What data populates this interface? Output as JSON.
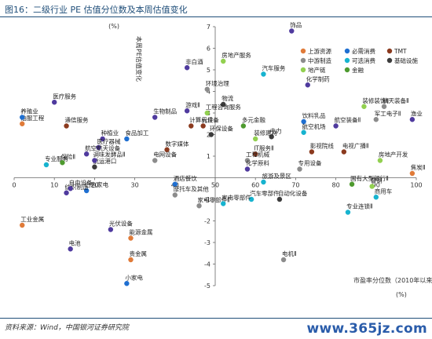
{
  "figure_title": "图16：二级行业 PE 估值分位数及本周估值变化",
  "source_note": "资料来源：Wind，中国银河证券研究院",
  "watermark": "www.365jz.com",
  "chart_data": {
    "type": "scatter",
    "title": "",
    "xlabel": "市盈率分位数（2010年以来）",
    "xunit": "(%)",
    "ylabel": "本周PE估值变化",
    "yunit": "(%)",
    "xlim": [
      0,
      100
    ],
    "ylim": [
      -5,
      7
    ],
    "xticks": [
      0,
      10,
      20,
      30,
      40,
      50,
      60,
      70,
      80,
      90,
      100
    ],
    "yticks": [
      -5,
      -4,
      -3,
      -2,
      -1,
      1,
      2,
      3,
      4,
      5,
      6,
      7
    ],
    "grid": false,
    "legend_position": "top-right",
    "series": [
      {
        "name": "上游资源",
        "color": "#e07b39",
        "points": [
          {
            "label": "工业金属",
            "x": 2,
            "y": -2.2
          },
          {
            "label": "能源金属",
            "x": 29,
            "y": -2.8
          },
          {
            "label": "贵金属",
            "x": 29,
            "y": -3.8
          },
          {
            "label": "油服工程",
            "x": 2,
            "y": 2.5
          },
          {
            "label": "焦炭Ⅱ",
            "x": 99,
            "y": 0.2
          }
        ]
      },
      {
        "name": "必需消费",
        "color": "#1f6fd1",
        "points": [
          {
            "label": "养殖业",
            "x": 2,
            "y": 2.8
          },
          {
            "label": "小家电",
            "x": 28,
            "y": -4.9
          },
          {
            "label": "白色家电",
            "x": 18,
            "y": -0.6
          },
          {
            "label": "饮料乳品",
            "x": 72,
            "y": 2.6
          },
          {
            "label": "食品加工",
            "x": 28,
            "y": 1.8
          },
          {
            "label": "酒店餐饮",
            "x": 40,
            "y": -0.3
          }
        ]
      },
      {
        "name": "TMT",
        "color": "#8b3a1e",
        "points": [
          {
            "label": "通信服务",
            "x": 13,
            "y": 2.4
          },
          {
            "label": "计算机设备",
            "x": 44,
            "y": 2.4
          },
          {
            "label": "元件",
            "x": 47,
            "y": 2.4
          },
          {
            "label": "影视院线",
            "x": 74,
            "y": 1.2
          },
          {
            "label": "电视广播Ⅱ",
            "x": 82,
            "y": 1.2
          },
          {
            "label": "IT服务Ⅱ",
            "x": 60,
            "y": 1.1
          },
          {
            "label": "数字媒体",
            "x": 38,
            "y": 1.3
          }
        ]
      },
      {
        "name": "中游制造",
        "color": "#8c8c8c",
        "points": [
          {
            "label": "环境治理",
            "x": 48,
            "y": 4.1
          },
          {
            "label": "航天装备Ⅱ",
            "x": 92,
            "y": 3.3
          },
          {
            "label": "电机Ⅱ",
            "x": 67,
            "y": -3.8
          },
          {
            "label": "工程机械",
            "x": 58,
            "y": 0.8
          },
          {
            "label": "摩托车及其他",
            "x": 40,
            "y": -0.8
          },
          {
            "label": "电网设备",
            "x": 35,
            "y": 0.8
          },
          {
            "label": "专用设备",
            "x": 71,
            "y": 0.4
          },
          {
            "label": "家电零部件Ⅱ",
            "x": 46,
            "y": -1.3
          },
          {
            "label": "军工电子Ⅱ",
            "x": 90,
            "y": 2.7
          }
        ]
      },
      {
        "name": "可选消费",
        "color": "#17b3cf",
        "points": [
          {
            "label": "汽车服务",
            "x": 62,
            "y": 4.8
          },
          {
            "label": "航空机场",
            "x": 72,
            "y": 2.1
          },
          {
            "label": "专业服务",
            "x": 8,
            "y": 0.6
          },
          {
            "label": "汽车零部件",
            "x": 59,
            "y": -1.0
          },
          {
            "label": "商用车",
            "x": 90,
            "y": -0.9
          },
          {
            "label": "专业连锁Ⅱ",
            "x": 83,
            "y": -1.6
          },
          {
            "label": "旅游及景区",
            "x": 62,
            "y": -0.2
          },
          {
            "label": "家电零部件",
            "x": 52,
            "y": -1.2
          }
        ]
      },
      {
        "name": "基础设施",
        "color": "#3c3c3c",
        "points": [
          {
            "label": "物流",
            "x": 52,
            "y": 3.4
          },
          {
            "label": "航运港口",
            "x": 20,
            "y": 0.5
          },
          {
            "label": "自动化设备",
            "x": 66,
            "y": -1.0
          },
          {
            "label": "环保设备",
            "x": 49,
            "y": 2.0
          },
          {
            "label": "电力",
            "x": 64,
            "y": 1.9
          }
        ]
      },
      {
        "name": "地产链",
        "color": "#92d050",
        "points": [
          {
            "label": "房地产服务",
            "x": 52,
            "y": 5.4
          },
          {
            "label": "装修装饰Ⅱ",
            "x": 87,
            "y": 3.3
          },
          {
            "label": "房地产开发",
            "x": 91,
            "y": 0.8
          },
          {
            "label": "工程咨询服务",
            "x": 48,
            "y": 3.0
          },
          {
            "label": "装修建材",
            "x": 60,
            "y": 1.8
          },
          {
            "label": "普钢",
            "x": 89,
            "y": -0.4
          }
        ]
      },
      {
        "name": "金融",
        "color": "#4e9a2f",
        "points": [
          {
            "label": "国有大型银行Ⅱ",
            "x": 84,
            "y": -0.3
          },
          {
            "label": "保险Ⅱ",
            "x": 12,
            "y": 0.7
          },
          {
            "label": "多元金融",
            "x": 57,
            "y": 2.4
          }
        ]
      },
      {
        "name": "其他",
        "color": "#4f3a9e",
        "points": [
          {
            "label": "饰品",
            "x": 69,
            "y": 6.8
          },
          {
            "label": "非白酒",
            "x": 43,
            "y": 5.1
          },
          {
            "label": "化学制药",
            "x": 73,
            "y": 4.3
          },
          {
            "label": "医疗服务",
            "x": 10,
            "y": 3.5
          },
          {
            "label": "渔业",
            "x": 99,
            "y": 2.7
          },
          {
            "label": "航空装备Ⅱ",
            "x": 80,
            "y": 2.4
          },
          {
            "label": "生物制品",
            "x": 35,
            "y": 2.8
          },
          {
            "label": "游戏Ⅱ",
            "x": 43,
            "y": 3.1
          },
          {
            "label": "种植业",
            "x": 22,
            "y": 1.8
          },
          {
            "label": "医疗器械",
            "x": 21,
            "y": 1.4
          },
          {
            "label": "调味发酵品Ⅱ",
            "x": 20,
            "y": 0.8
          },
          {
            "label": "纺织制造",
            "x": 13,
            "y": -0.7
          },
          {
            "label": "自由设备",
            "x": 14,
            "y": -0.5
          },
          {
            "label": "光伏设备",
            "x": 24,
            "y": -2.4
          },
          {
            "label": "电池",
            "x": 14,
            "y": -3.3
          },
          {
            "label": "航空航天设备",
            "x": 18,
            "y": 1.1
          },
          {
            "label": "化学原料",
            "x": 58,
            "y": 0.4
          }
        ]
      }
    ]
  }
}
